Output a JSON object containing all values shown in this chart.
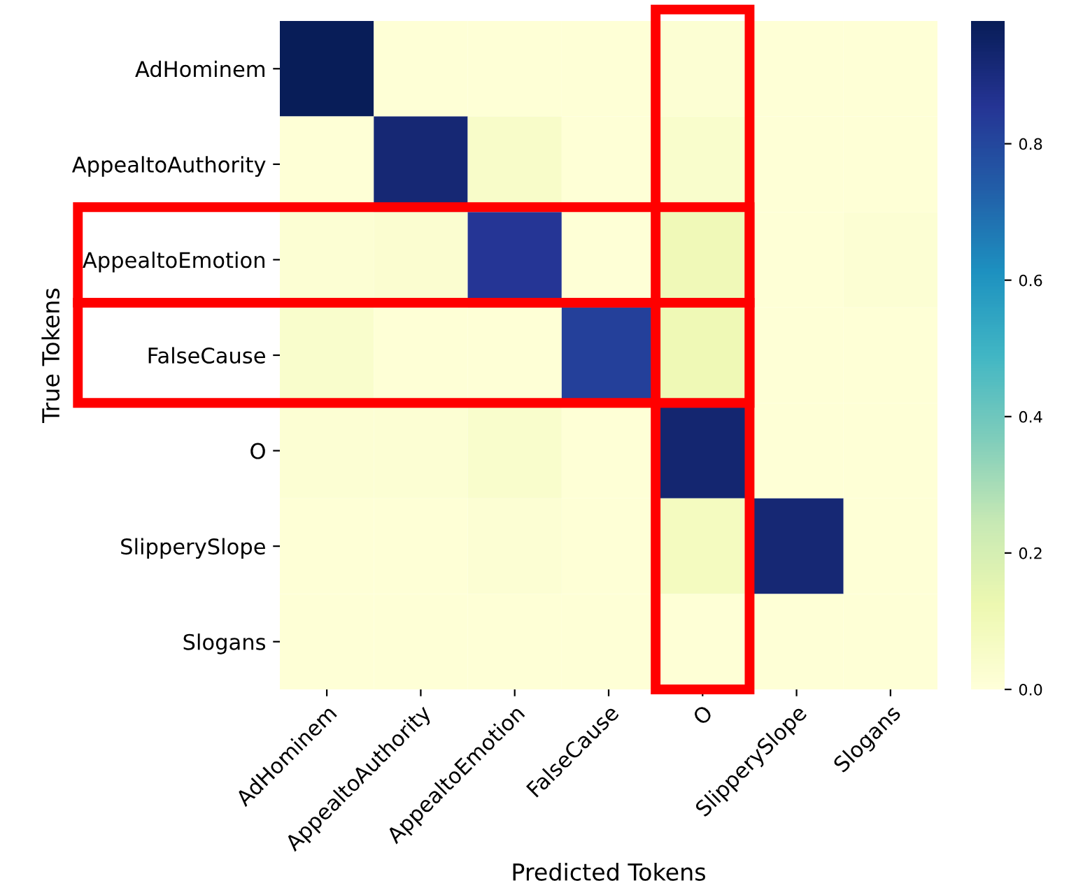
{
  "chart_data": {
    "type": "heatmap",
    "xlabel": "Predicted Tokens",
    "ylabel": "True Tokens",
    "categories": [
      "AdHominem",
      "AppealtoAuthority",
      "AppealtoEmotion",
      "FalseCause",
      "O",
      "SlipperySlope",
      "Slogans"
    ],
    "y_categories": [
      "AdHominem",
      "AppealtoAuthority",
      "AppealtoEmotion",
      "FalseCause",
      "O",
      "SlipperySlope",
      "Slogans"
    ],
    "cells": [
      [
        0.98,
        0.01,
        0.01,
        0.01,
        0.02,
        0.01,
        0.01
      ],
      [
        0.01,
        0.92,
        0.05,
        0.01,
        0.04,
        0.01,
        0.01
      ],
      [
        0.02,
        0.03,
        0.85,
        0.01,
        0.1,
        0.01,
        0.02
      ],
      [
        0.04,
        0.01,
        0.01,
        0.82,
        0.11,
        0.01,
        0.01
      ],
      [
        0.02,
        0.02,
        0.04,
        0.01,
        0.93,
        0.01,
        0.01
      ],
      [
        0.01,
        0.01,
        0.02,
        0.01,
        0.08,
        0.92,
        0.01
      ],
      [
        0.01,
        0.01,
        0.01,
        0.01,
        0.01,
        0.01,
        0.01
      ]
    ],
    "clim": [
      0,
      0.98
    ],
    "cticks": [
      {
        "value": 0,
        "label": "0.0"
      },
      {
        "value": 0.2,
        "label": "0.2"
      },
      {
        "value": 0.4,
        "label": "0.4"
      },
      {
        "value": 0.6,
        "label": "0.6"
      },
      {
        "value": 0.8,
        "label": "0.8"
      }
    ]
  }
}
